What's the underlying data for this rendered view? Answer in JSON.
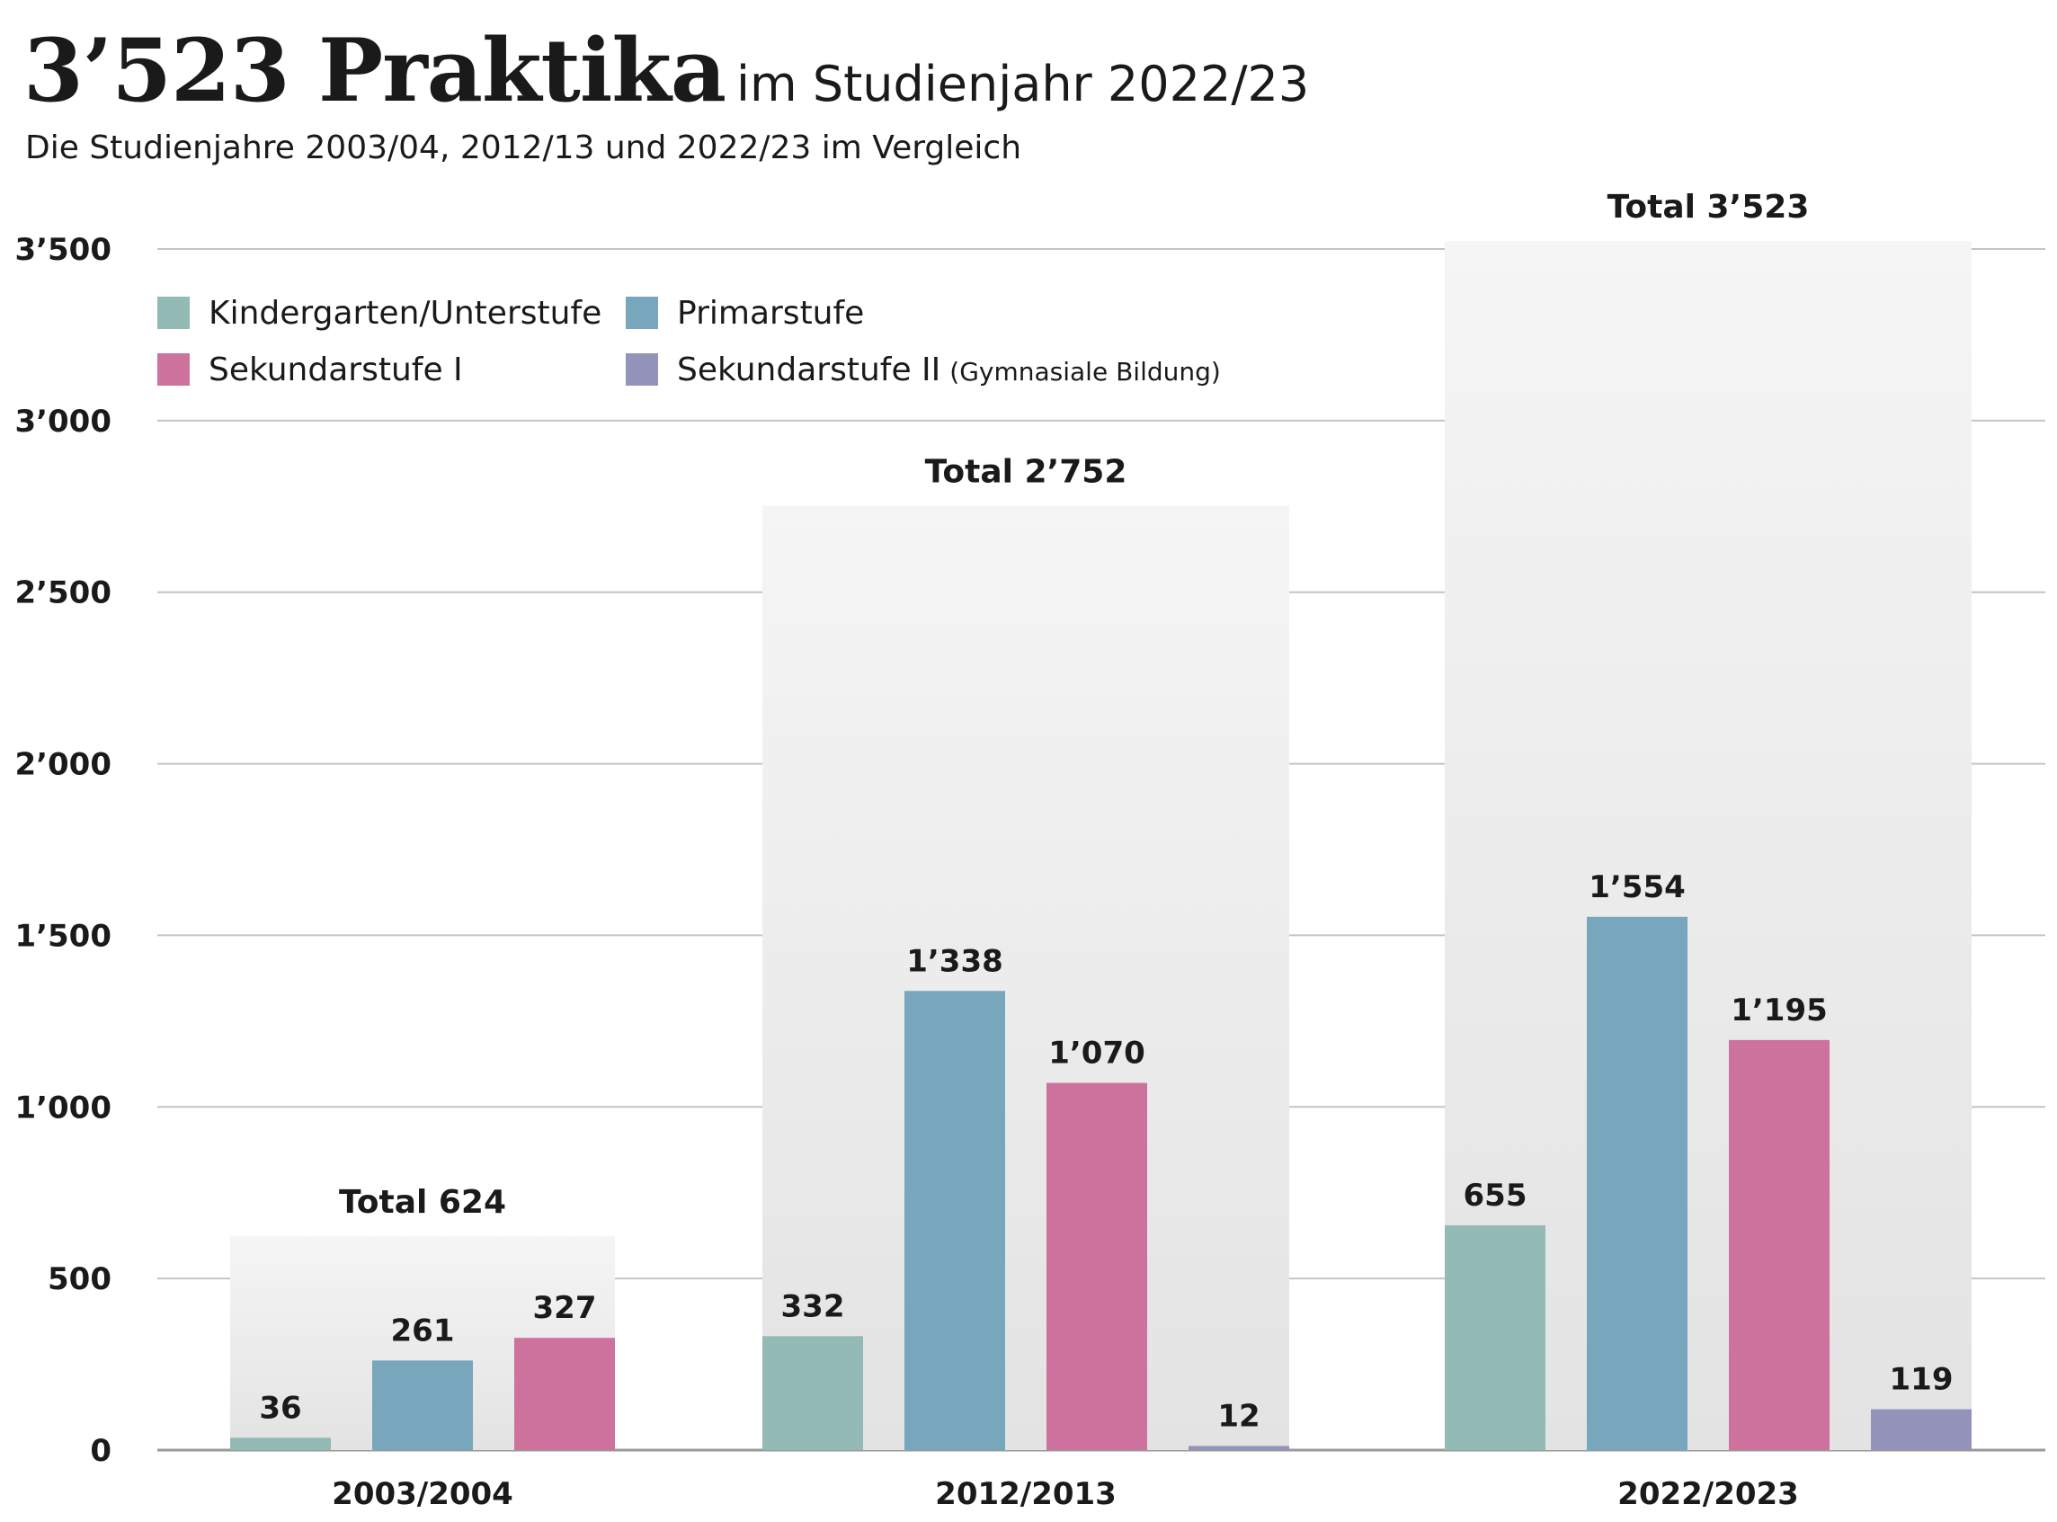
{
  "header": {
    "title_main": "3’523 Praktika",
    "title_rest": "im Studienjahr 2022/23",
    "subtitle": "Die Studienjahre 2003/04, 2012/13 und 2022/23 im Vergleich"
  },
  "chart_data": {
    "type": "bar",
    "categories": [
      "2003/2004",
      "2012/2013",
      "2022/2023"
    ],
    "series": [
      {
        "name": "Kindergarten/Unterstufe",
        "color": "#93bab5",
        "values": [
          36,
          332,
          655
        ],
        "labels": [
          "36",
          "332",
          "655"
        ]
      },
      {
        "name": "Primarstufe",
        "color": "#77a6bd",
        "values": [
          261,
          1338,
          1554
        ],
        "labels": [
          "261",
          "1’338",
          "1’554"
        ]
      },
      {
        "name": "Sekundarstufe I",
        "color": "#cc729c",
        "values": [
          327,
          1070,
          1195
        ],
        "labels": [
          "327",
          "1’070",
          "1’195"
        ]
      },
      {
        "name": "Sekundarstufe II",
        "name_note": "(Gymnasiale Bildung)",
        "color": "#9393bb",
        "values": [
          null,
          12,
          119
        ],
        "labels": [
          "",
          "12",
          "119"
        ]
      }
    ],
    "totals": [
      {
        "value": 624,
        "label": "Total 624"
      },
      {
        "value": 2752,
        "label": "Total 2’752"
      },
      {
        "value": 3523,
        "label": "Total 3’523"
      }
    ],
    "yticks": [
      {
        "value": 0,
        "label": "0"
      },
      {
        "value": 500,
        "label": "500"
      },
      {
        "value": 1000,
        "label": "1’000"
      },
      {
        "value": 1500,
        "label": "1’500"
      },
      {
        "value": 2000,
        "label": "2’000"
      },
      {
        "value": 2500,
        "label": "2’500"
      },
      {
        "value": 3000,
        "label": "3’000"
      },
      {
        "value": 3500,
        "label": "3’500"
      }
    ],
    "ylim": [
      0,
      3500
    ],
    "grid": true,
    "legend_position": "top-left"
  }
}
